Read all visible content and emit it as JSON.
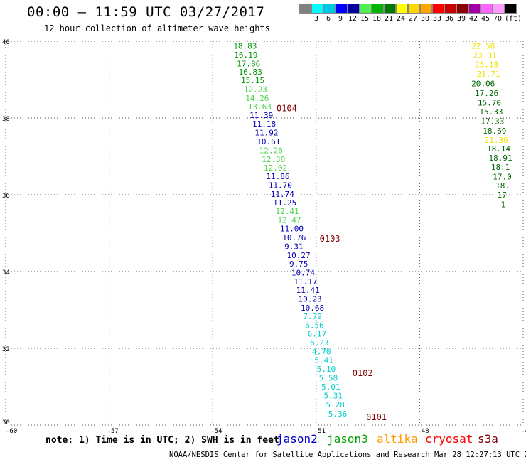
{
  "header": {
    "title": "00:00 – 11:59 UTC 03/27/2017",
    "subtitle": "12 hour collection of altimeter wave heights"
  },
  "scale": {
    "unit": "(ft)",
    "bins": [
      {
        "color": "#808080",
        "label": ""
      },
      {
        "color": "#00ffff",
        "label": "3"
      },
      {
        "color": "#00c8e6",
        "label": "6"
      },
      {
        "color": "#0000ff",
        "label": "9"
      },
      {
        "color": "#0000a0",
        "label": "12"
      },
      {
        "color": "#4ef04e",
        "label": "15"
      },
      {
        "color": "#00b400",
        "label": "18"
      },
      {
        "color": "#007800",
        "label": "21"
      },
      {
        "color": "#ffff00",
        "label": "24"
      },
      {
        "color": "#ffd700",
        "label": "27"
      },
      {
        "color": "#ffa500",
        "label": "30"
      },
      {
        "color": "#ff0000",
        "label": "33"
      },
      {
        "color": "#c80000",
        "label": "36"
      },
      {
        "color": "#8b0000",
        "label": "39"
      },
      {
        "color": "#a000a0",
        "label": "42"
      },
      {
        "color": "#ff64ff",
        "label": "45"
      },
      {
        "color": "#ff9bff",
        "label": "70"
      },
      {
        "color": "#000000",
        "label": ""
      }
    ]
  },
  "colors": {
    "c_cyan": "#00cccc",
    "c_blue": "#0000b4",
    "c_lgreen": "#4ed44e",
    "c_green": "#009600",
    "c_dgreen": "#006400",
    "c_yellow": "#f0e000",
    "c_dred": "#800000"
  },
  "chart_data": {
    "type": "scatter",
    "xlabel": "",
    "ylabel": "",
    "xlim": [
      -60,
      -45
    ],
    "ylim": [
      30,
      40
    ],
    "x_ticks": [
      "-60",
      "-57",
      "-54",
      "-51",
      "-48",
      "-45"
    ],
    "y_ticks": [
      "30",
      "32",
      "34",
      "36",
      "38",
      "40"
    ],
    "grid": true,
    "track1": [
      {
        "x": -53.4,
        "y": 39.88,
        "label": "18.83",
        "c": "c_green"
      },
      {
        "x": -53.38,
        "y": 39.65,
        "label": "16.19",
        "c": "c_green"
      },
      {
        "x": -53.3,
        "y": 39.42,
        "label": "17.86",
        "c": "c_green"
      },
      {
        "x": -53.25,
        "y": 39.2,
        "label": "16.83",
        "c": "c_green"
      },
      {
        "x": -53.18,
        "y": 38.98,
        "label": "15.15",
        "c": "c_green"
      },
      {
        "x": -53.1,
        "y": 38.75,
        "label": "12.23",
        "c": "c_lgreen"
      },
      {
        "x": -53.05,
        "y": 38.52,
        "label": "14.26",
        "c": "c_lgreen"
      },
      {
        "x": -52.98,
        "y": 38.3,
        "label": "13.63",
        "c": "c_lgreen"
      },
      {
        "x": -52.93,
        "y": 38.07,
        "label": "11.39",
        "c": "c_blue"
      },
      {
        "x": -52.85,
        "y": 37.85,
        "label": "11.18",
        "c": "c_blue"
      },
      {
        "x": -52.78,
        "y": 37.62,
        "label": "11.92",
        "c": "c_blue"
      },
      {
        "x": -52.72,
        "y": 37.39,
        "label": "10.61",
        "c": "c_blue"
      },
      {
        "x": -52.65,
        "y": 37.16,
        "label": "12.26",
        "c": "c_lgreen"
      },
      {
        "x": -52.58,
        "y": 36.93,
        "label": "12.30",
        "c": "c_lgreen"
      },
      {
        "x": -52.52,
        "y": 36.7,
        "label": "12.02",
        "c": "c_lgreen"
      },
      {
        "x": -52.45,
        "y": 36.48,
        "label": "11.86",
        "c": "c_blue"
      },
      {
        "x": -52.38,
        "y": 36.25,
        "label": "11.70",
        "c": "c_blue"
      },
      {
        "x": -52.32,
        "y": 36.02,
        "label": "11.74",
        "c": "c_blue"
      },
      {
        "x": -52.25,
        "y": 35.8,
        "label": "11.25",
        "c": "c_blue"
      },
      {
        "x": -52.18,
        "y": 35.57,
        "label": "12.41",
        "c": "c_lgreen"
      },
      {
        "x": -52.12,
        "y": 35.34,
        "label": "12.47",
        "c": "c_lgreen"
      },
      {
        "x": -52.05,
        "y": 35.12,
        "label": "11.00",
        "c": "c_blue"
      },
      {
        "x": -51.98,
        "y": 34.89,
        "label": "10.76",
        "c": "c_blue"
      },
      {
        "x": -51.92,
        "y": 34.66,
        "label": "9.31",
        "c": "c_blue"
      },
      {
        "x": -51.85,
        "y": 34.43,
        "label": "10.27",
        "c": "c_blue"
      },
      {
        "x": -51.78,
        "y": 34.2,
        "label": "9.75",
        "c": "c_blue"
      },
      {
        "x": -51.72,
        "y": 33.97,
        "label": "10.74",
        "c": "c_blue"
      },
      {
        "x": -51.65,
        "y": 33.74,
        "label": "11.17",
        "c": "c_blue"
      },
      {
        "x": -51.58,
        "y": 33.52,
        "label": "11.41",
        "c": "c_blue"
      },
      {
        "x": -51.52,
        "y": 33.29,
        "label": "10.23",
        "c": "c_blue"
      },
      {
        "x": -51.45,
        "y": 33.06,
        "label": "10.68",
        "c": "c_blue"
      },
      {
        "x": -51.38,
        "y": 32.83,
        "label": "7.79",
        "c": "c_cyan"
      },
      {
        "x": -51.32,
        "y": 32.6,
        "label": "6.56",
        "c": "c_cyan"
      },
      {
        "x": -51.25,
        "y": 32.38,
        "label": "6.17",
        "c": "c_cyan"
      },
      {
        "x": -51.18,
        "y": 32.15,
        "label": "6.23",
        "c": "c_cyan"
      },
      {
        "x": -51.12,
        "y": 31.92,
        "label": "4.70",
        "c": "c_cyan"
      },
      {
        "x": -51.05,
        "y": 31.69,
        "label": "5.41",
        "c": "c_cyan"
      },
      {
        "x": -50.98,
        "y": 31.46,
        "label": "5.10",
        "c": "c_cyan"
      },
      {
        "x": -50.92,
        "y": 31.23,
        "label": "5.58",
        "c": "c_cyan"
      },
      {
        "x": -50.85,
        "y": 31.0,
        "label": "5.01",
        "c": "c_cyan"
      },
      {
        "x": -50.78,
        "y": 30.77,
        "label": "5.31",
        "c": "c_cyan"
      },
      {
        "x": -50.72,
        "y": 30.54,
        "label": "5.28",
        "c": "c_cyan"
      },
      {
        "x": -50.65,
        "y": 30.3,
        "label": "5.36",
        "c": "c_cyan"
      }
    ],
    "track2": [
      {
        "x": -46.5,
        "y": 39.88,
        "label": "22.58",
        "c": "c_yellow"
      },
      {
        "x": -46.45,
        "y": 39.64,
        "label": "23.31",
        "c": "c_yellow"
      },
      {
        "x": -46.4,
        "y": 39.4,
        "label": "25.18",
        "c": "c_yellow"
      },
      {
        "x": -46.35,
        "y": 39.15,
        "label": "21.71",
        "c": "c_yellow"
      },
      {
        "x": -46.5,
        "y": 38.9,
        "label": "20.06",
        "c": "c_dgreen"
      },
      {
        "x": -46.4,
        "y": 38.65,
        "label": "17.26",
        "c": "c_dgreen"
      },
      {
        "x": -46.32,
        "y": 38.4,
        "label": "15.70",
        "c": "c_dgreen"
      },
      {
        "x": -46.27,
        "y": 38.17,
        "label": "15.33",
        "c": "c_dgreen"
      },
      {
        "x": -46.23,
        "y": 37.92,
        "label": "17.33",
        "c": "c_dgreen"
      },
      {
        "x": -46.17,
        "y": 37.67,
        "label": "18.69",
        "c": "c_dgreen"
      },
      {
        "x": -46.12,
        "y": 37.43,
        "label": "21.36",
        "c": "c_yellow"
      },
      {
        "x": -46.05,
        "y": 37.2,
        "label": "18.14",
        "c": "c_dgreen"
      },
      {
        "x": -46.0,
        "y": 36.96,
        "label": "18.91",
        "c": "c_dgreen"
      },
      {
        "x": -45.93,
        "y": 36.72,
        "label": "18.1",
        "c": "c_dgreen"
      },
      {
        "x": -45.88,
        "y": 36.47,
        "label": "17.0",
        "c": "c_dgreen"
      },
      {
        "x": -45.8,
        "y": 36.24,
        "label": "18.",
        "c": "c_dgreen"
      },
      {
        "x": -45.75,
        "y": 36.0,
        "label": "17",
        "c": "c_dgreen"
      },
      {
        "x": -45.65,
        "y": 35.75,
        "label": "1",
        "c": "c_dgreen"
      }
    ],
    "time_labels": [
      {
        "x": -52.15,
        "y": 38.25,
        "label": "0104"
      },
      {
        "x": -50.9,
        "y": 34.85,
        "label": "0103"
      },
      {
        "x": -49.95,
        "y": 31.35,
        "label": "0102"
      },
      {
        "x": -49.55,
        "y": 30.2,
        "label": "0101"
      }
    ]
  },
  "footer": {
    "note": "note: 1) Time is in UTC; 2) SWH is in feet",
    "legend": [
      {
        "label": "jason2",
        "color": "#0000d0"
      },
      {
        "label": "jason3",
        "color": "#00a000"
      },
      {
        "label": "altika",
        "color": "#ff9900"
      },
      {
        "label": "cryosat",
        "color": "#ff0000"
      },
      {
        "label": "s3a",
        "color": "#800000"
      }
    ],
    "credit": "NOAA/NESDIS Center for Satellite Applications and Research   Mar 28 12:27:13 UTC 2017"
  }
}
